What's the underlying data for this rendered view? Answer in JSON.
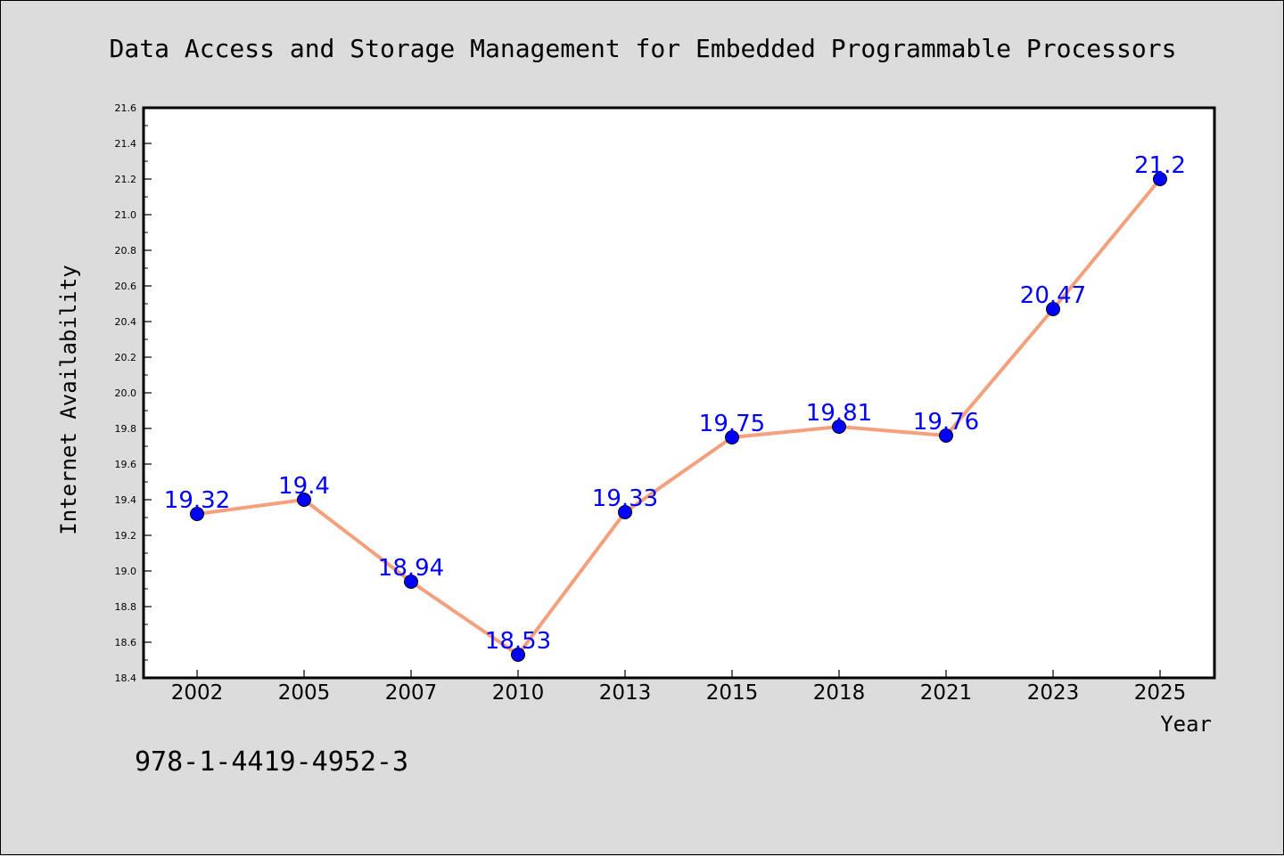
{
  "chart_data": {
    "type": "line",
    "title": "Data Access and Storage Management for Embedded Programmable Processors",
    "xlabel": "Year",
    "ylabel": "Internet Availability",
    "categories": [
      "2002",
      "2005",
      "2007",
      "2010",
      "2013",
      "2015",
      "2018",
      "2021",
      "2023",
      "2025"
    ],
    "series": [
      {
        "values": [
          19.32,
          19.4,
          18.94,
          18.53,
          19.33,
          19.75,
          19.81,
          19.76,
          20.47,
          21.2
        ],
        "labels": [
          "19.32",
          "19.4",
          "18.94",
          "18.53",
          "19.33",
          "19.75",
          "19.81",
          "19.76",
          "20.47",
          "21.2"
        ]
      }
    ],
    "ylim": [
      18.4,
      21.6
    ],
    "yticks": [
      "18.4",
      "18.6",
      "18.8",
      "19.0",
      "19.2",
      "19.4",
      "19.6",
      "19.8",
      "20.0",
      "20.2",
      "20.4",
      "20.6",
      "20.8",
      "21.0",
      "21.2",
      "21.4",
      "21.6"
    ],
    "grid": false,
    "line_color": "#f4a07c",
    "marker_color": "#0000ff",
    "label_color": "#0000ff"
  },
  "footer": {
    "isbn": "978-1-4419-4952-3"
  }
}
